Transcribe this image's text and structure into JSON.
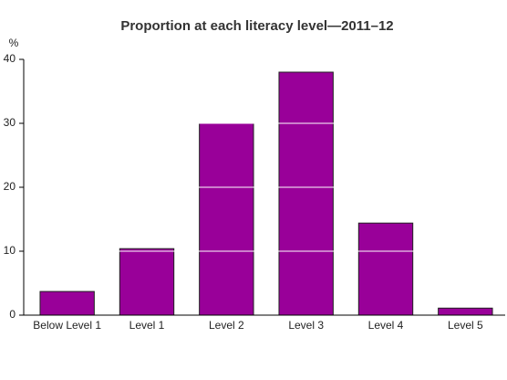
{
  "chart_data": {
    "type": "bar",
    "title": "Proportion at each literacy level—2011–12",
    "y_label": "%",
    "categories": [
      "Below Level 1",
      "Level 1",
      "Level 2",
      "Level 3",
      "Level 4",
      "Level 5"
    ],
    "values": [
      3.7,
      10.4,
      30.0,
      38.0,
      14.4,
      1.1
    ],
    "color": "#990099",
    "ylim": [
      0,
      40
    ],
    "yticks": [
      0,
      10,
      20,
      30,
      40
    ],
    "grid": true
  }
}
